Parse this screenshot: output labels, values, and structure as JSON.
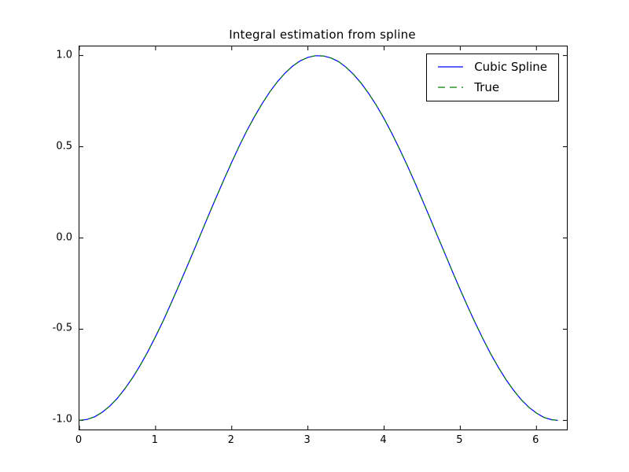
{
  "chart_data": {
    "type": "line",
    "title": "Integral estimation from spline",
    "xlabel": "",
    "ylabel": "",
    "xlim": [
      0,
      6.4
    ],
    "ylim": [
      -1.05,
      1.05
    ],
    "grid": false,
    "legend_position": "upper right",
    "xticks": [
      0,
      1,
      2,
      3,
      4,
      5,
      6
    ],
    "xtick_labels": [
      "0",
      "1",
      "2",
      "3",
      "4",
      "5",
      "6"
    ],
    "yticks": [
      -1.0,
      -0.5,
      0.0,
      0.5,
      1.0
    ],
    "ytick_labels": [
      "-1.0",
      "-0.5",
      "0.0",
      "0.5",
      "1.0"
    ],
    "x": [
      0,
      0.1,
      0.2,
      0.3,
      0.4,
      0.5,
      0.6,
      0.7,
      0.8,
      0.9,
      1,
      1.1,
      1.2,
      1.3,
      1.4,
      1.5,
      1.6,
      1.7,
      1.8,
      1.9,
      2,
      2.1,
      2.2,
      2.3,
      2.4,
      2.5,
      2.6,
      2.7,
      2.8,
      2.9,
      3,
      3.1,
      3.2,
      3.3,
      3.4,
      3.5,
      3.6,
      3.7,
      3.8,
      3.9,
      4,
      4.1,
      4.2,
      4.3,
      4.4,
      4.5,
      4.6,
      4.7,
      4.8,
      4.9,
      5,
      5.1,
      5.2,
      5.3,
      5.4,
      5.5,
      5.6,
      5.7,
      5.8,
      5.9,
      6,
      6.1,
      6.2,
      6.28
    ],
    "series": [
      {
        "name": "Cubic Spline",
        "color": "#0000ff",
        "style": "solid",
        "values": [
          -1.0,
          -0.995,
          -0.98,
          -0.955,
          -0.921,
          -0.878,
          -0.825,
          -0.765,
          -0.697,
          -0.622,
          -0.54,
          -0.454,
          -0.362,
          -0.267,
          -0.17,
          -0.071,
          0.029,
          0.129,
          0.227,
          0.323,
          0.416,
          0.505,
          0.589,
          0.666,
          0.737,
          0.801,
          0.857,
          0.904,
          0.942,
          0.971,
          0.99,
          0.999,
          0.998,
          0.987,
          0.967,
          0.936,
          0.896,
          0.848,
          0.791,
          0.726,
          0.654,
          0.575,
          0.49,
          0.401,
          0.307,
          0.211,
          0.112,
          0.012,
          -0.087,
          -0.187,
          -0.284,
          -0.378,
          -0.469,
          -0.554,
          -0.635,
          -0.709,
          -0.776,
          -0.835,
          -0.886,
          -0.928,
          -0.96,
          -0.984,
          -0.996,
          -1.0
        ]
      },
      {
        "name": "True",
        "color": "#008000",
        "style": "dashed",
        "values": [
          -1.0,
          -0.995,
          -0.98,
          -0.955,
          -0.921,
          -0.878,
          -0.825,
          -0.765,
          -0.697,
          -0.622,
          -0.54,
          -0.454,
          -0.362,
          -0.267,
          -0.17,
          -0.071,
          0.029,
          0.129,
          0.227,
          0.323,
          0.416,
          0.505,
          0.589,
          0.666,
          0.737,
          0.801,
          0.857,
          0.904,
          0.942,
          0.971,
          0.99,
          0.999,
          0.998,
          0.987,
          0.967,
          0.936,
          0.896,
          0.848,
          0.791,
          0.726,
          0.654,
          0.575,
          0.49,
          0.401,
          0.307,
          0.211,
          0.112,
          0.012,
          -0.087,
          -0.187,
          -0.284,
          -0.378,
          -0.469,
          -0.554,
          -0.635,
          -0.709,
          -0.776,
          -0.835,
          -0.886,
          -0.928,
          -0.96,
          -0.984,
          -0.996,
          -1.0
        ]
      }
    ]
  }
}
